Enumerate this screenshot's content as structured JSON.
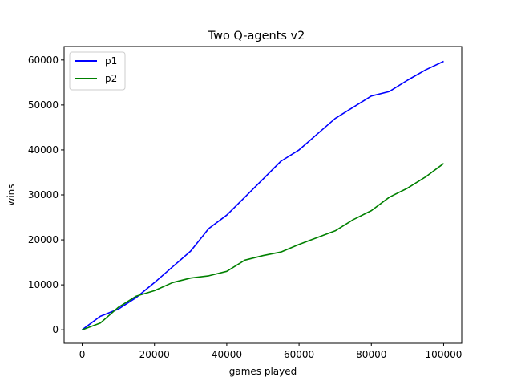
{
  "chart_data": {
    "type": "line",
    "title": "Two Q-agents v2",
    "xlabel": "games played",
    "ylabel": "wins",
    "xlim": [
      -5000,
      105000
    ],
    "ylim": [
      -3000,
      63000
    ],
    "xticks": [
      0,
      20000,
      40000,
      60000,
      80000,
      100000
    ],
    "yticks": [
      0,
      10000,
      20000,
      30000,
      40000,
      50000,
      60000
    ],
    "grid": false,
    "legend_position": "top-left",
    "x": [
      0,
      5000,
      10000,
      15000,
      20000,
      25000,
      30000,
      35000,
      40000,
      45000,
      50000,
      55000,
      60000,
      65000,
      70000,
      75000,
      80000,
      85000,
      90000,
      95000,
      100000
    ],
    "series": [
      {
        "name": "p1",
        "color": "#0000ff",
        "values": [
          0,
          3000,
          4600,
          7200,
          10500,
          14000,
          17500,
          22500,
          25500,
          29500,
          33500,
          37500,
          40000,
          43500,
          47000,
          49500,
          52000,
          53000,
          55500,
          57800,
          59700
        ]
      },
      {
        "name": "p2",
        "color": "#008000",
        "values": [
          0,
          1500,
          5000,
          7500,
          8700,
          10500,
          11500,
          12000,
          13000,
          15500,
          16500,
          17300,
          19000,
          20500,
          22000,
          24500,
          26500,
          29500,
          31500,
          34000,
          37000
        ]
      }
    ]
  }
}
